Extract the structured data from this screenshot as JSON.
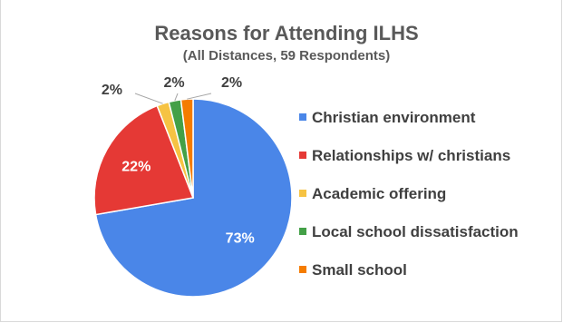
{
  "chart_data": {
    "type": "pie",
    "title": "Reasons for Attending ILHS",
    "subtitle": "(All Distances, 59 Respondents)",
    "categories": [
      "Christian environment",
      "Relationships w/ christians",
      "Academic offering",
      "Local school dissatisfaction",
      "Small school"
    ],
    "values": [
      73,
      22,
      2,
      2,
      2
    ],
    "data_labels": [
      "73%",
      "22%",
      "2%",
      "2%",
      "2%"
    ],
    "colors": [
      "#4a86e8",
      "#e53935",
      "#f6c343",
      "#43a047",
      "#f57c00"
    ],
    "legend_position": "right"
  }
}
